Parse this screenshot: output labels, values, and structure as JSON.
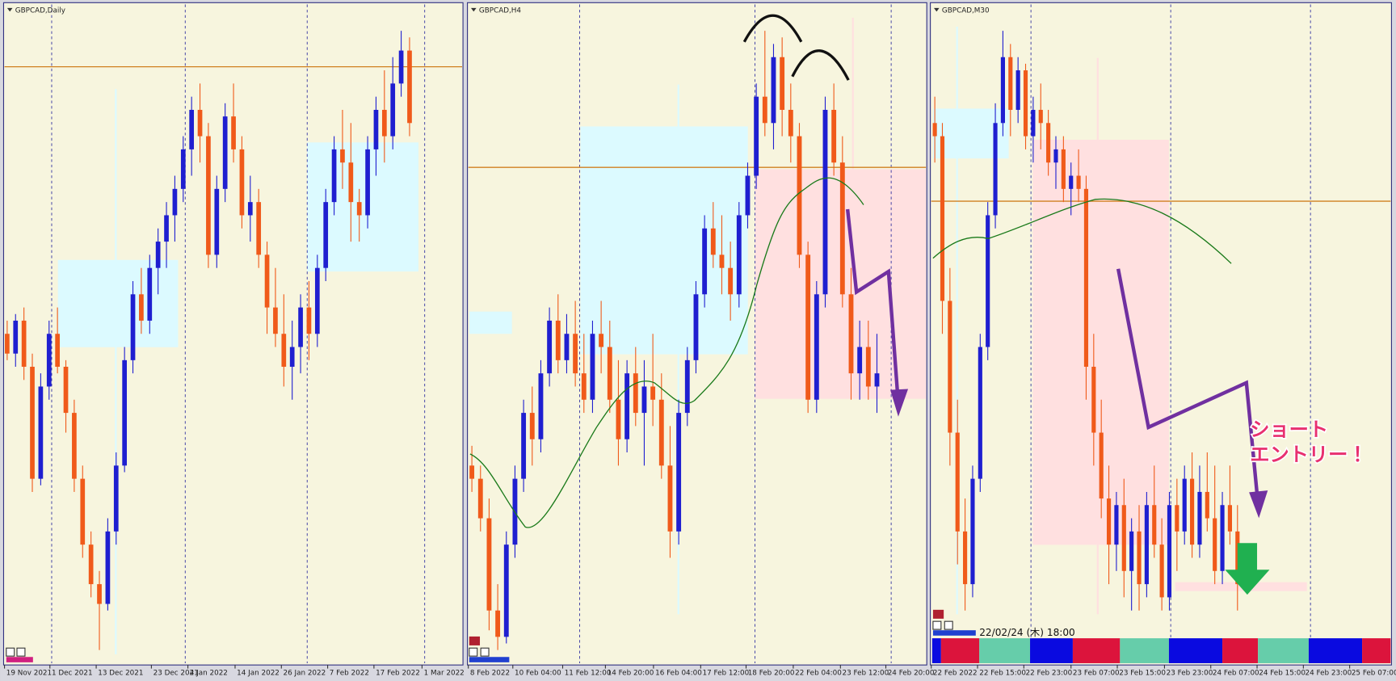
{
  "panels": [
    {
      "title": "GBPCAD,Daily",
      "x_labels": [
        "19 Nov 2021",
        "1 Dec 2021",
        "13 Dec 2021",
        "23 Dec 2021",
        "4 Jan 2022",
        "14 Jan 2022",
        "26 Jan 2022",
        "7 Feb 2022",
        "17 Feb 2022",
        "1 Mar 2022"
      ],
      "candles": [
        [
          50,
          52,
          46,
          47
        ],
        [
          47,
          53,
          45,
          52
        ],
        [
          52,
          54,
          43,
          45
        ],
        [
          45,
          47,
          26,
          28
        ],
        [
          28,
          44,
          27,
          42
        ],
        [
          42,
          52,
          40,
          50
        ],
        [
          50,
          54,
          44,
          45
        ],
        [
          45,
          46,
          35,
          38
        ],
        [
          38,
          40,
          26,
          28
        ],
        [
          28,
          30,
          16,
          18
        ],
        [
          18,
          20,
          10,
          12
        ],
        [
          12,
          14,
          2,
          9
        ],
        [
          9,
          22,
          8,
          20
        ],
        [
          20,
          32,
          18,
          30
        ],
        [
          30,
          48,
          29,
          46
        ],
        [
          46,
          58,
          44,
          56
        ],
        [
          56,
          60,
          50,
          52
        ],
        [
          52,
          62,
          50,
          60
        ],
        [
          60,
          66,
          56,
          64
        ],
        [
          64,
          70,
          60,
          68
        ],
        [
          68,
          74,
          64,
          72
        ],
        [
          72,
          80,
          70,
          78
        ],
        [
          78,
          86,
          74,
          84
        ],
        [
          84,
          88,
          76,
          80
        ],
        [
          80,
          82,
          60,
          62
        ],
        [
          62,
          74,
          60,
          72
        ],
        [
          72,
          85,
          70,
          83
        ],
        [
          83,
          88,
          76,
          78
        ],
        [
          78,
          80,
          66,
          68
        ],
        [
          68,
          74,
          64,
          70
        ],
        [
          70,
          72,
          60,
          62
        ],
        [
          62,
          64,
          50,
          54
        ],
        [
          54,
          60,
          48,
          50
        ],
        [
          50,
          56,
          42,
          45
        ],
        [
          45,
          52,
          40,
          48
        ],
        [
          48,
          56,
          44,
          54
        ],
        [
          54,
          58,
          46,
          50
        ],
        [
          50,
          62,
          48,
          60
        ],
        [
          60,
          72,
          58,
          70
        ],
        [
          70,
          80,
          68,
          78
        ],
        [
          78,
          84,
          72,
          76
        ],
        [
          76,
          82,
          64,
          70
        ],
        [
          70,
          72,
          64,
          68
        ],
        [
          68,
          80,
          66,
          78
        ],
        [
          78,
          86,
          74,
          84
        ],
        [
          84,
          90,
          76,
          80
        ],
        [
          80,
          92,
          78,
          88
        ],
        [
          88,
          96,
          86,
          93
        ],
        [
          93,
          95,
          80,
          82
        ]
      ]
    },
    {
      "title": "GBPCAD,H4",
      "x_labels": [
        "8 Feb 2022",
        "10 Feb 04:00",
        "11 Feb 12:00",
        "14 Feb 20:00",
        "16 Feb 04:00",
        "17 Feb 12:00",
        "18 Feb 20:00",
        "22 Feb 04:00",
        "23 Feb 12:00",
        "24 Feb 20:00"
      ],
      "candles": [
        [
          30,
          33,
          26,
          28
        ],
        [
          28,
          30,
          20,
          22
        ],
        [
          22,
          25,
          5,
          8
        ],
        [
          8,
          12,
          2,
          4
        ],
        [
          4,
          20,
          3,
          18
        ],
        [
          18,
          30,
          16,
          28
        ],
        [
          28,
          40,
          26,
          38
        ],
        [
          38,
          42,
          30,
          34
        ],
        [
          34,
          46,
          32,
          44
        ],
        [
          44,
          54,
          42,
          52
        ],
        [
          52,
          56,
          44,
          46
        ],
        [
          46,
          53,
          44,
          50
        ],
        [
          50,
          55,
          42,
          44
        ],
        [
          44,
          50,
          38,
          40
        ],
        [
          40,
          52,
          38,
          50
        ],
        [
          50,
          55,
          44,
          48
        ],
        [
          48,
          52,
          38,
          40
        ],
        [
          40,
          46,
          30,
          34
        ],
        [
          34,
          46,
          32,
          44
        ],
        [
          44,
          48,
          36,
          38
        ],
        [
          38,
          46,
          30,
          42
        ],
        [
          42,
          50,
          36,
          40
        ],
        [
          40,
          44,
          28,
          30
        ],
        [
          30,
          36,
          16,
          20
        ],
        [
          20,
          40,
          18,
          38
        ],
        [
          38,
          48,
          36,
          46
        ],
        [
          46,
          58,
          44,
          56
        ],
        [
          56,
          68,
          54,
          66
        ],
        [
          66,
          70,
          60,
          62
        ],
        [
          62,
          68,
          56,
          60
        ],
        [
          60,
          64,
          52,
          56
        ],
        [
          56,
          70,
          54,
          68
        ],
        [
          68,
          76,
          66,
          74
        ],
        [
          74,
          88,
          72,
          86
        ],
        [
          86,
          96,
          80,
          82
        ],
        [
          82,
          94,
          78,
          92
        ],
        [
          92,
          95,
          80,
          84
        ],
        [
          84,
          88,
          76,
          80
        ],
        [
          80,
          82,
          60,
          62
        ],
        [
          62,
          64,
          38,
          40
        ],
        [
          40,
          58,
          38,
          56
        ],
        [
          56,
          86,
          54,
          84
        ],
        [
          84,
          88,
          74,
          76
        ],
        [
          76,
          80,
          54,
          56
        ],
        [
          56,
          60,
          40,
          44
        ],
        [
          44,
          52,
          40,
          48
        ],
        [
          48,
          52,
          40,
          42
        ],
        [
          42,
          50,
          38,
          44
        ]
      ]
    },
    {
      "title": "GBPCAD,M30",
      "x_labels": [
        "22 Feb 2022",
        "22 Feb 15:00",
        "22 Feb 23:00",
        "23 Feb 07:00",
        "23 Feb 15:00",
        "23 Feb 23:00",
        "24 Feb 07:00",
        "24 Feb 15:00",
        "24 Feb 23:00",
        "25 Feb 07:00"
      ],
      "candles": [
        [
          82,
          86,
          76,
          80
        ],
        [
          80,
          82,
          50,
          55
        ],
        [
          55,
          60,
          30,
          35
        ],
        [
          35,
          40,
          15,
          20
        ],
        [
          20,
          25,
          8,
          12
        ],
        [
          12,
          30,
          10,
          28
        ],
        [
          28,
          50,
          26,
          48
        ],
        [
          48,
          70,
          46,
          68
        ],
        [
          68,
          85,
          66,
          82
        ],
        [
          82,
          96,
          80,
          92
        ],
        [
          92,
          94,
          80,
          84
        ],
        [
          84,
          92,
          82,
          90
        ],
        [
          90,
          91,
          78,
          80
        ],
        [
          80,
          86,
          76,
          84
        ],
        [
          84,
          88,
          78,
          82
        ],
        [
          82,
          84,
          74,
          76
        ],
        [
          76,
          80,
          72,
          78
        ],
        [
          78,
          80,
          70,
          72
        ],
        [
          72,
          76,
          68,
          74
        ],
        [
          74,
          78,
          70,
          72
        ],
        [
          72,
          74,
          40,
          45
        ],
        [
          45,
          50,
          30,
          35
        ],
        [
          35,
          40,
          22,
          25
        ],
        [
          25,
          30,
          12,
          18
        ],
        [
          18,
          26,
          14,
          24
        ],
        [
          24,
          28,
          10,
          14
        ],
        [
          14,
          22,
          8,
          20
        ],
        [
          20,
          24,
          8,
          12
        ],
        [
          12,
          26,
          10,
          24
        ],
        [
          24,
          30,
          16,
          18
        ],
        [
          18,
          22,
          8,
          10
        ],
        [
          10,
          26,
          8,
          24
        ],
        [
          24,
          28,
          14,
          20
        ],
        [
          20,
          30,
          18,
          28
        ],
        [
          28,
          32,
          16,
          18
        ],
        [
          18,
          30,
          16,
          26
        ],
        [
          26,
          32,
          20,
          22
        ],
        [
          22,
          30,
          12,
          14
        ],
        [
          14,
          26,
          12,
          24
        ],
        [
          24,
          30,
          18,
          20
        ],
        [
          20,
          24,
          8,
          12
        ]
      ]
    }
  ],
  "annotation": [
    "ショート",
    "エントリー！"
  ],
  "timestamp": "22/02/24 (木) 18:00"
}
